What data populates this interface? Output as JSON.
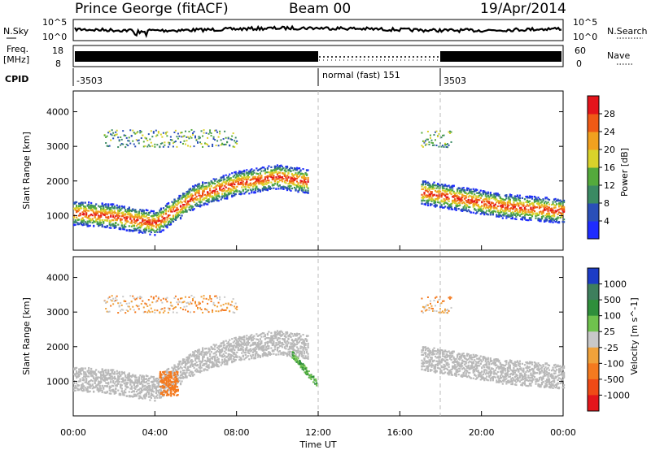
{
  "header": {
    "title": "Prince George (fitACF)",
    "beam": "Beam 00",
    "date": "19/Apr/2014"
  },
  "panels": {
    "nsky_label": "N.Sky",
    "nsky_scale_top": "10^5",
    "nsky_scale_bottom": "10^0",
    "nsearch_label": "N.Search",
    "nsearch_scale_top": "10^5",
    "nsearch_scale_bottom": "10^0",
    "freq_label_1": "Freq.",
    "freq_label_2": "[MHz]",
    "freq_top": "18",
    "freq_bottom": "8",
    "nave_label": "Nave",
    "nave_top": "60",
    "nave_bottom": "0",
    "cpid_label": "CPID",
    "cpid_segments": [
      "-3503",
      "normal (fast) 151",
      "3503"
    ]
  },
  "chart_data": [
    {
      "type": "heatmap",
      "title": "",
      "xlabel": "Time UT",
      "ylabel": "Slant Range [km]",
      "x_ticks": [
        "00:00",
        "04:00",
        "08:00",
        "12:00",
        "16:00",
        "20:00",
        "00:00"
      ],
      "y_ticks": [
        "1000",
        "2000",
        "3000",
        "4000"
      ],
      "ylim": [
        0,
        4600
      ],
      "colorbar_label": "Power [dB]",
      "colorbar_ticks": [
        "4",
        "8",
        "12",
        "16",
        "20",
        "24",
        "28"
      ],
      "colorbar_colors": [
        "#1e2cff",
        "#2a4fb8",
        "#3b8a63",
        "#54aa3c",
        "#d9d22b",
        "#f1a11f",
        "#ef5a16",
        "#e4141b"
      ],
      "features": [
        {
          "name": "main band",
          "x_hours": [
            0,
            2,
            4,
            6,
            8,
            10,
            11.5
          ],
          "slant_range_km": [
            1100,
            1000,
            800,
            1600,
            1950,
            2150,
            2000
          ]
        },
        {
          "name": "late band",
          "x_hours": [
            17,
            19,
            21,
            23,
            24
          ],
          "slant_range_km": [
            1700,
            1500,
            1300,
            1200,
            1150
          ]
        }
      ]
    },
    {
      "type": "heatmap",
      "title": "",
      "xlabel": "Time UT",
      "ylabel": "Slant Range [km]",
      "x_ticks": [
        "00:00",
        "04:00",
        "08:00",
        "12:00",
        "16:00",
        "20:00",
        "00:00"
      ],
      "y_ticks": [
        "1000",
        "2000",
        "3000",
        "4000"
      ],
      "ylim": [
        0,
        4600
      ],
      "colorbar_label": "Velocity [m s^-1]",
      "colorbar_ticks": [
        "1000",
        "500",
        "100",
        "25",
        "-25",
        "-100",
        "-500",
        "-1000"
      ],
      "colorbar_colors": [
        "#1c3cc6",
        "#3e7f5d",
        "#2f8f3b",
        "#6fc24d",
        "#c8c8c8",
        "#f0a23b",
        "#f47a1f",
        "#ef4a16",
        "#e3161b"
      ]
    }
  ],
  "colors": {
    "axis": "#000000",
    "grid_dash": "#bbbbbb",
    "ground_scatter": "#b9b9b9"
  }
}
